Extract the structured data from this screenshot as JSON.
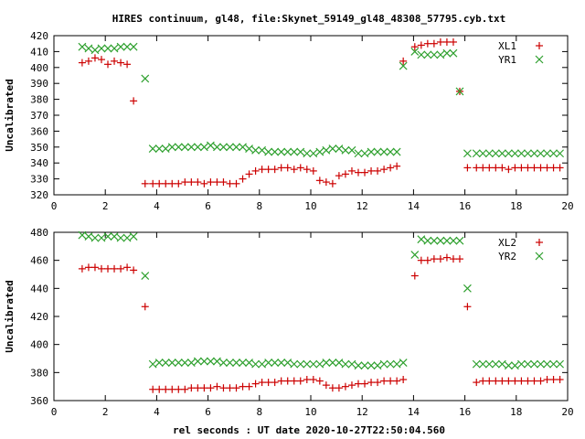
{
  "title": "HIRES continuum, gl48, file:Skynet_59149_gl48_48308_57795.cyb.txt",
  "xlabel": "rel seconds : UT date 2020-10-27T22:50:04.560",
  "chart_data": [
    {
      "type": "scatter",
      "ylabel": "Uncalibrated",
      "xlim": [
        0,
        20
      ],
      "ylim": [
        320,
        420
      ],
      "xticks": [
        0,
        2,
        4,
        6,
        8,
        10,
        12,
        14,
        16,
        18,
        20
      ],
      "yticks": [
        320,
        330,
        340,
        350,
        360,
        370,
        380,
        390,
        400,
        410,
        420
      ],
      "grid": false,
      "legend_position": "top-right",
      "series": [
        {
          "name": "XL1",
          "marker": "plus",
          "color": "#cc0000",
          "x": [
            1.1,
            1.35,
            1.6,
            1.85,
            2.1,
            2.35,
            2.6,
            2.85,
            3.1,
            3.55,
            3.85,
            4.1,
            4.35,
            4.6,
            4.85,
            5.1,
            5.35,
            5.6,
            5.85,
            6.1,
            6.35,
            6.6,
            6.85,
            7.1,
            7.35,
            7.6,
            7.85,
            8.1,
            8.35,
            8.6,
            8.85,
            9.1,
            9.35,
            9.6,
            9.85,
            10.1,
            10.35,
            10.6,
            10.85,
            11.1,
            11.35,
            11.6,
            11.85,
            12.1,
            12.35,
            12.6,
            12.85,
            13.1,
            13.35,
            13.6,
            14.05,
            14.3,
            14.55,
            14.8,
            15.05,
            15.3,
            15.55,
            15.8,
            16.1,
            16.45,
            16.7,
            16.95,
            17.2,
            17.45,
            17.7,
            17.95,
            18.2,
            18.45,
            18.7,
            18.95,
            19.2,
            19.45,
            19.7
          ],
          "y": [
            403,
            404,
            406,
            405,
            402,
            404,
            403,
            402,
            379,
            327,
            327,
            327,
            327,
            327,
            327,
            328,
            328,
            328,
            327,
            328,
            328,
            328,
            327,
            327,
            330,
            333,
            335,
            336,
            336,
            336,
            337,
            337,
            336,
            337,
            336,
            335,
            329,
            328,
            327,
            332,
            333,
            335,
            334,
            334,
            335,
            335,
            336,
            337,
            338,
            404,
            413,
            414,
            415,
            415,
            416,
            416,
            416,
            385,
            337,
            337,
            337,
            337,
            337,
            337,
            336,
            337,
            337,
            337,
            337,
            337,
            337,
            337,
            337
          ]
        },
        {
          "name": "YR1",
          "marker": "cross",
          "color": "#2ea02e",
          "x": [
            1.1,
            1.35,
            1.6,
            1.85,
            2.1,
            2.35,
            2.6,
            2.85,
            3.1,
            3.55,
            3.85,
            4.1,
            4.35,
            4.6,
            4.85,
            5.1,
            5.35,
            5.6,
            5.85,
            6.1,
            6.35,
            6.6,
            6.85,
            7.1,
            7.35,
            7.6,
            7.85,
            8.1,
            8.35,
            8.6,
            8.85,
            9.1,
            9.35,
            9.6,
            9.85,
            10.1,
            10.35,
            10.6,
            10.85,
            11.1,
            11.35,
            11.6,
            11.85,
            12.1,
            12.35,
            12.6,
            12.85,
            13.1,
            13.35,
            13.6,
            14.05,
            14.3,
            14.55,
            14.8,
            15.05,
            15.3,
            15.55,
            15.8,
            16.1,
            16.45,
            16.7,
            16.95,
            17.2,
            17.45,
            17.7,
            17.95,
            18.2,
            18.45,
            18.7,
            18.95,
            19.2,
            19.45,
            19.7
          ],
          "y": [
            413,
            412,
            411,
            412,
            412,
            412,
            413,
            413,
            413,
            393,
            349,
            349,
            349,
            350,
            350,
            350,
            350,
            350,
            350,
            351,
            350,
            350,
            350,
            350,
            350,
            349,
            348,
            348,
            347,
            347,
            347,
            347,
            347,
            347,
            346,
            346,
            347,
            348,
            349,
            349,
            348,
            348,
            346,
            346,
            347,
            347,
            347,
            347,
            347,
            401,
            410,
            408,
            408,
            408,
            408,
            409,
            409,
            385,
            346,
            346,
            346,
            346,
            346,
            346,
            346,
            346,
            346,
            346,
            346,
            346,
            346,
            346,
            346
          ]
        }
      ]
    },
    {
      "type": "scatter",
      "ylabel": "Uncalibrated",
      "xlim": [
        0,
        20
      ],
      "ylim": [
        360,
        480
      ],
      "xticks": [
        0,
        2,
        4,
        6,
        8,
        10,
        12,
        14,
        16,
        18,
        20
      ],
      "yticks": [
        360,
        380,
        400,
        420,
        440,
        460,
        480
      ],
      "grid": false,
      "legend_position": "top-right",
      "series": [
        {
          "name": "XL2",
          "marker": "plus",
          "color": "#cc0000",
          "x": [
            1.1,
            1.35,
            1.6,
            1.85,
            2.1,
            2.35,
            2.6,
            2.85,
            3.1,
            3.55,
            3.85,
            4.1,
            4.35,
            4.6,
            4.85,
            5.1,
            5.35,
            5.6,
            5.85,
            6.1,
            6.35,
            6.6,
            6.85,
            7.1,
            7.35,
            7.6,
            7.85,
            8.1,
            8.35,
            8.6,
            8.85,
            9.1,
            9.35,
            9.6,
            9.85,
            10.1,
            10.35,
            10.6,
            10.85,
            11.1,
            11.35,
            11.6,
            11.85,
            12.1,
            12.35,
            12.6,
            12.85,
            13.1,
            13.35,
            13.6,
            14.05,
            14.3,
            14.55,
            14.8,
            15.05,
            15.3,
            15.55,
            15.8,
            16.1,
            16.45,
            16.7,
            16.95,
            17.2,
            17.45,
            17.7,
            17.95,
            18.2,
            18.45,
            18.7,
            18.95,
            19.2,
            19.45,
            19.7
          ],
          "y": [
            454,
            455,
            455,
            454,
            454,
            454,
            454,
            455,
            453,
            427,
            368,
            368,
            368,
            368,
            368,
            368,
            369,
            369,
            369,
            369,
            370,
            369,
            369,
            369,
            370,
            370,
            372,
            373,
            373,
            373,
            374,
            374,
            374,
            374,
            375,
            375,
            374,
            371,
            369,
            369,
            370,
            371,
            372,
            372,
            373,
            373,
            374,
            374,
            374,
            375,
            449,
            460,
            460,
            461,
            461,
            462,
            461,
            461,
            427,
            373,
            374,
            374,
            374,
            374,
            374,
            374,
            374,
            374,
            374,
            374,
            375,
            375,
            375
          ]
        },
        {
          "name": "YR2",
          "marker": "cross",
          "color": "#2ea02e",
          "x": [
            1.1,
            1.35,
            1.6,
            1.85,
            2.1,
            2.35,
            2.6,
            2.85,
            3.1,
            3.55,
            3.85,
            4.1,
            4.35,
            4.6,
            4.85,
            5.1,
            5.35,
            5.6,
            5.85,
            6.1,
            6.35,
            6.6,
            6.85,
            7.1,
            7.35,
            7.6,
            7.85,
            8.1,
            8.35,
            8.6,
            8.85,
            9.1,
            9.35,
            9.6,
            9.85,
            10.1,
            10.35,
            10.6,
            10.85,
            11.1,
            11.35,
            11.6,
            11.85,
            12.1,
            12.35,
            12.6,
            12.85,
            13.1,
            13.35,
            13.6,
            14.05,
            14.3,
            14.55,
            14.8,
            15.05,
            15.3,
            15.55,
            15.8,
            16.1,
            16.45,
            16.7,
            16.95,
            17.2,
            17.45,
            17.7,
            17.95,
            18.2,
            18.45,
            18.7,
            18.95,
            19.2,
            19.45,
            19.7
          ],
          "y": [
            478,
            477,
            476,
            476,
            477,
            477,
            476,
            476,
            477,
            449,
            386,
            387,
            387,
            387,
            387,
            387,
            387,
            388,
            388,
            388,
            388,
            387,
            387,
            387,
            387,
            387,
            386,
            386,
            387,
            387,
            387,
            387,
            386,
            386,
            386,
            386,
            386,
            387,
            387,
            387,
            386,
            386,
            385,
            385,
            385,
            385,
            386,
            386,
            386,
            387,
            464,
            475,
            474,
            474,
            474,
            474,
            474,
            474,
            440,
            386,
            386,
            386,
            386,
            386,
            385,
            385,
            386,
            386,
            386,
            386,
            386,
            386,
            386
          ]
        }
      ]
    }
  ]
}
